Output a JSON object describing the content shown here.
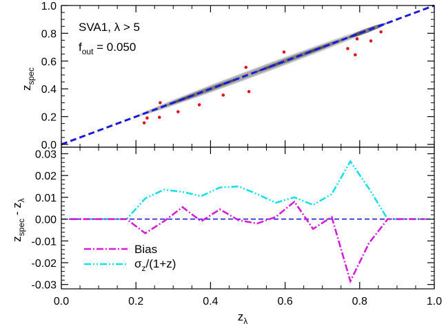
{
  "chart_data": [
    {
      "type": "scatter",
      "panel": "top",
      "xlim": [
        0.0,
        1.0
      ],
      "ylim": [
        -0.02,
        1.0
      ],
      "ylabel": "z_spec",
      "yticks": [
        0.0,
        0.2,
        0.4,
        0.6,
        0.8,
        1.0
      ],
      "yticklabels": [
        "0.0",
        "0.2",
        "0.4",
        "0.6",
        "0.8",
        "1.0"
      ],
      "annotation_line1": "SVA1, λ > 5",
      "annotation_line2_main": "f",
      "annotation_line2_sub": "out",
      "annotation_line2_value": " = 0.050",
      "density_contours": "gray filled contours along z_spec = z_λ from 0.2 to 0.87",
      "one_to_one_line": {
        "x": [
          0.0,
          1.0
        ],
        "y": [
          0.0,
          1.0
        ],
        "style": "dashed",
        "color": "#1a1adb"
      },
      "outliers": {
        "color": "#e0151d",
        "x": [
          0.222,
          0.23,
          0.263,
          0.265,
          0.313,
          0.37,
          0.434,
          0.495,
          0.503,
          0.597,
          0.768,
          0.788,
          0.793,
          0.83,
          0.857
        ],
        "y": [
          0.155,
          0.19,
          0.195,
          0.3,
          0.235,
          0.285,
          0.355,
          0.555,
          0.38,
          0.665,
          0.69,
          0.645,
          0.76,
          0.745,
          0.81
        ]
      },
      "colors": {
        "contour_outer": "#cccccc",
        "contour_mid": "#a6a6a6",
        "contour_inner": "#7a7a7a",
        "contour_core": "#4d4d4d"
      }
    },
    {
      "type": "line",
      "panel": "bottom",
      "xlim": [
        0.0,
        1.0
      ],
      "ylim": [
        -0.032,
        0.033
      ],
      "xlabel": "z_λ",
      "ylabel": "z_spec - z_λ",
      "xticks": [
        0.0,
        0.2,
        0.4,
        0.6,
        0.8,
        1.0
      ],
      "xticklabels": [
        "0.0",
        "0.2",
        "0.4",
        "0.6",
        "0.8",
        "1.0"
      ],
      "yticks": [
        -0.03,
        -0.02,
        -0.01,
        0.0,
        0.01,
        0.02,
        0.03
      ],
      "yticklabels": [
        "-0.03",
        "-0.02",
        "-0.01",
        "0.00",
        "0.01",
        "0.02",
        "0.03"
      ],
      "zero_line": {
        "y": 0.0,
        "style": "dashed",
        "color": "#1a1adb"
      },
      "legend_placement": "bottom-left",
      "series": [
        {
          "name": "Bias",
          "color": "#d81bd8",
          "style": "dash-dot",
          "x": [
            0.025,
            0.075,
            0.125,
            0.175,
            0.225,
            0.275,
            0.325,
            0.375,
            0.425,
            0.475,
            0.525,
            0.575,
            0.625,
            0.675,
            0.725,
            0.775,
            0.825,
            0.875,
            0.925,
            0.975
          ],
          "y": [
            0.0,
            0.0,
            0.0,
            0.0,
            -0.0065,
            -0.001,
            0.0055,
            -0.001,
            0.0045,
            -0.0005,
            -0.002,
            0.001,
            0.008,
            -0.0045,
            0.001,
            -0.0285,
            -0.011,
            0.0,
            0.0,
            0.0
          ]
        },
        {
          "name": "σ_z/(1+z)",
          "color": "#14e0e8",
          "style": "dash-dot-dot",
          "x": [
            0.025,
            0.075,
            0.125,
            0.175,
            0.225,
            0.275,
            0.325,
            0.375,
            0.425,
            0.475,
            0.525,
            0.575,
            0.625,
            0.675,
            0.725,
            0.775,
            0.825,
            0.875,
            0.925,
            0.975
          ],
          "y": [
            0.0,
            0.0,
            0.0,
            0.0,
            0.0095,
            0.0135,
            0.0125,
            0.0105,
            0.0145,
            0.015,
            0.0115,
            0.0075,
            0.01,
            0.0065,
            0.0115,
            0.0265,
            0.014,
            0.0,
            0.0,
            0.0
          ]
        }
      ],
      "legend": {
        "bias_label": "Bias",
        "sigma_main": "σ",
        "sigma_sub": "z",
        "sigma_rest": "/(1+z)"
      }
    }
  ],
  "axis_text": {
    "top_ylabel_main": "z",
    "top_ylabel_sub": "spec",
    "bottom_ylabel_main": "z",
    "bottom_ylabel_sub": "spec",
    "bottom_ylabel_mid": " - z",
    "bottom_ylabel_sub2": "λ",
    "xlabel_main": "z",
    "xlabel_sub": "λ"
  }
}
